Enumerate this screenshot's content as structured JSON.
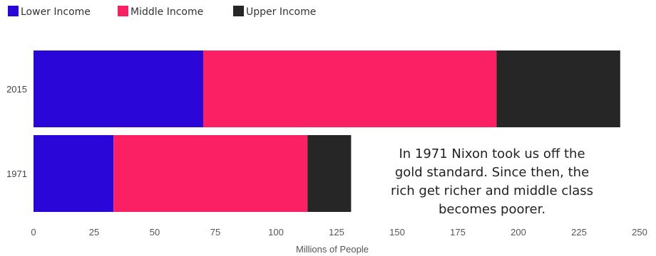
{
  "chart_data": {
    "type": "bar",
    "orientation": "horizontal",
    "stacked": true,
    "categories": [
      "2015",
      "1971"
    ],
    "series": [
      {
        "name": "Lower Income",
        "color": "#2a06d8",
        "values": [
          70,
          33
        ]
      },
      {
        "name": "Middle Income",
        "color": "#fb1f64",
        "values": [
          121,
          80
        ]
      },
      {
        "name": "Upper Income",
        "color": "#262626",
        "values": [
          51,
          18
        ]
      }
    ],
    "xlabel": "Millions of People",
    "ylabel": "",
    "xlim": [
      0,
      250
    ],
    "xticks": [
      0,
      25,
      50,
      75,
      100,
      125,
      150,
      175,
      200,
      225,
      250
    ],
    "grid": false,
    "legend_position": "top-left",
    "annotation": {
      "lines": [
        "In 1971 Nixon took us off the",
        "gold standard. Since then, the",
        "rich get richer and middle class",
        "becomes poorer."
      ]
    }
  }
}
